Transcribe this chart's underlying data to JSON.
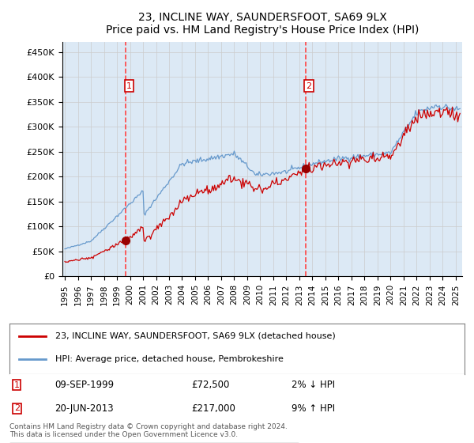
{
  "title": "23, INCLINE WAY, SAUNDERSFOOT, SA69 9LX",
  "subtitle": "Price paid vs. HM Land Registry's House Price Index (HPI)",
  "legend_line1": "23, INCLINE WAY, SAUNDERSFOOT, SA69 9LX (detached house)",
  "legend_line2": "HPI: Average price, detached house, Pembrokeshire",
  "footnote": "Contains HM Land Registry data © Crown copyright and database right 2024.\nThis data is licensed under the Open Government Licence v3.0.",
  "sale1_date_num": 1999.69,
  "sale1_price": 72500,
  "sale1_label": "1",
  "sale1_date_str": "09-SEP-1999",
  "sale1_hpi_rel": "2% ↓ HPI",
  "sale2_date_num": 2013.47,
  "sale2_price": 217000,
  "sale2_label": "2",
  "sale2_date_str": "20-JUN-2013",
  "sale2_hpi_rel": "9% ↑ HPI",
  "hpi_color": "#6699cc",
  "price_color": "#cc0000",
  "dot_color": "#990000",
  "vline_color": "#ff4444",
  "bg_color": "#dce9f5",
  "plot_bg": "#ffffff",
  "grid_color": "#cccccc",
  "ylim": [
    0,
    470000
  ],
  "xlim_start": 1994.8,
  "xlim_end": 2025.5,
  "yticks": [
    0,
    50000,
    100000,
    150000,
    200000,
    250000,
    300000,
    350000,
    400000,
    450000
  ],
  "ytick_labels": [
    "£0",
    "£50K",
    "£100K",
    "£150K",
    "£200K",
    "£250K",
    "£300K",
    "£350K",
    "£400K",
    "£450K"
  ],
  "xtick_years": [
    1995,
    1996,
    1997,
    1998,
    1999,
    2000,
    2001,
    2002,
    2003,
    2004,
    2005,
    2006,
    2007,
    2008,
    2009,
    2010,
    2011,
    2012,
    2013,
    2014,
    2015,
    2016,
    2017,
    2018,
    2019,
    2020,
    2021,
    2022,
    2023,
    2024,
    2025
  ]
}
